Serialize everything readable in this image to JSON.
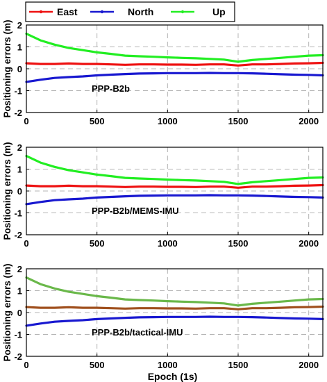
{
  "chart_data": [
    {
      "type": "line",
      "annotation": "PPP-B2b",
      "ylabel": "Positioning errors (m)",
      "xlabel": "",
      "xlim": [
        0,
        2100
      ],
      "ylim": [
        -2,
        2
      ],
      "xticks": [
        0,
        500,
        1000,
        1500,
        2000
      ],
      "yticks": [
        -2,
        -1,
        0,
        1,
        2
      ],
      "grid": true,
      "legend": "top",
      "series": [
        {
          "name": "East",
          "color": "#ee1111",
          "x": [
            0,
            100,
            200,
            300,
            400,
            500,
            600,
            700,
            800,
            900,
            1000,
            1100,
            1200,
            1300,
            1400,
            1500,
            1600,
            1700,
            1800,
            1900,
            2000,
            2100
          ],
          "y": [
            0.25,
            0.22,
            0.22,
            0.24,
            0.22,
            0.22,
            0.2,
            0.18,
            0.2,
            0.2,
            0.19,
            0.19,
            0.18,
            0.2,
            0.2,
            0.15,
            0.2,
            0.2,
            0.22,
            0.24,
            0.25,
            0.27
          ]
        },
        {
          "name": "North",
          "color": "#1818d0",
          "x": [
            0,
            100,
            200,
            300,
            400,
            500,
            600,
            700,
            800,
            900,
            1000,
            1100,
            1200,
            1300,
            1400,
            1500,
            1600,
            1700,
            1800,
            1900,
            2000,
            2100
          ],
          "y": [
            -0.6,
            -0.5,
            -0.42,
            -0.38,
            -0.35,
            -0.3,
            -0.27,
            -0.24,
            -0.22,
            -0.21,
            -0.2,
            -0.2,
            -0.2,
            -0.19,
            -0.2,
            -0.2,
            -0.21,
            -0.23,
            -0.25,
            -0.27,
            -0.28,
            -0.3
          ]
        },
        {
          "name": "Up",
          "color": "#22ee22",
          "x": [
            0,
            100,
            200,
            300,
            400,
            500,
            600,
            700,
            800,
            900,
            1000,
            1100,
            1200,
            1300,
            1400,
            1500,
            1600,
            1700,
            1800,
            1900,
            2000,
            2100
          ],
          "y": [
            1.6,
            1.3,
            1.1,
            0.95,
            0.85,
            0.75,
            0.68,
            0.6,
            0.57,
            0.55,
            0.52,
            0.5,
            0.48,
            0.45,
            0.42,
            0.32,
            0.4,
            0.45,
            0.5,
            0.55,
            0.6,
            0.62
          ]
        }
      ]
    },
    {
      "type": "line",
      "annotation": "PPP-B2b/MEMS-IMU",
      "ylabel": "Positioning errors (m)",
      "xlabel": "",
      "xlim": [
        0,
        2100
      ],
      "ylim": [
        -2,
        2
      ],
      "xticks": [
        0,
        500,
        1000,
        1500,
        2000
      ],
      "yticks": [
        -2,
        -1,
        0,
        1,
        2
      ],
      "grid": true,
      "series": [
        {
          "name": "East",
          "color": "#ee1111",
          "x": [
            0,
            100,
            200,
            300,
            400,
            500,
            600,
            700,
            800,
            900,
            1000,
            1100,
            1200,
            1300,
            1400,
            1500,
            1600,
            1700,
            1800,
            1900,
            2000,
            2100
          ],
          "y": [
            0.25,
            0.22,
            0.22,
            0.24,
            0.22,
            0.22,
            0.2,
            0.18,
            0.2,
            0.2,
            0.19,
            0.19,
            0.18,
            0.2,
            0.2,
            0.15,
            0.2,
            0.2,
            0.22,
            0.24,
            0.25,
            0.27
          ]
        },
        {
          "name": "North",
          "color": "#1818d0",
          "x": [
            0,
            100,
            200,
            300,
            400,
            500,
            600,
            700,
            800,
            900,
            1000,
            1100,
            1200,
            1300,
            1400,
            1500,
            1600,
            1700,
            1800,
            1900,
            2000,
            2100
          ],
          "y": [
            -0.6,
            -0.5,
            -0.42,
            -0.38,
            -0.35,
            -0.3,
            -0.27,
            -0.24,
            -0.22,
            -0.21,
            -0.2,
            -0.2,
            -0.2,
            -0.19,
            -0.2,
            -0.2,
            -0.21,
            -0.23,
            -0.25,
            -0.27,
            -0.28,
            -0.3
          ]
        },
        {
          "name": "Up",
          "color": "#22ee22",
          "x": [
            0,
            100,
            200,
            300,
            400,
            500,
            600,
            700,
            800,
            900,
            1000,
            1100,
            1200,
            1300,
            1400,
            1500,
            1600,
            1700,
            1800,
            1900,
            2000,
            2100
          ],
          "y": [
            1.6,
            1.3,
            1.1,
            0.95,
            0.85,
            0.75,
            0.68,
            0.6,
            0.57,
            0.55,
            0.52,
            0.5,
            0.48,
            0.45,
            0.42,
            0.32,
            0.4,
            0.45,
            0.5,
            0.55,
            0.6,
            0.62
          ]
        }
      ]
    },
    {
      "type": "line",
      "annotation": "PPP-B2b/tactical-IMU",
      "ylabel": "Positioning errors (m)",
      "xlabel": "Epoch (1s)",
      "xlim": [
        0,
        2100
      ],
      "ylim": [
        -2,
        2
      ],
      "xticks": [
        0,
        500,
        1000,
        1500,
        2000
      ],
      "yticks": [
        -2,
        -1,
        0,
        1,
        2
      ],
      "grid": true,
      "series": [
        {
          "name": "East",
          "color": "#a0501e",
          "x": [
            0,
            100,
            200,
            300,
            400,
            500,
            600,
            700,
            800,
            900,
            1000,
            1100,
            1200,
            1300,
            1400,
            1500,
            1600,
            1700,
            1800,
            1900,
            2000,
            2100
          ],
          "y": [
            0.25,
            0.22,
            0.22,
            0.24,
            0.22,
            0.22,
            0.2,
            0.18,
            0.2,
            0.2,
            0.19,
            0.19,
            0.18,
            0.2,
            0.2,
            0.15,
            0.2,
            0.2,
            0.22,
            0.24,
            0.25,
            0.27
          ]
        },
        {
          "name": "North",
          "color": "#1818d0",
          "x": [
            0,
            100,
            200,
            300,
            400,
            500,
            600,
            700,
            800,
            900,
            1000,
            1100,
            1200,
            1300,
            1400,
            1500,
            1600,
            1700,
            1800,
            1900,
            2000,
            2100
          ],
          "y": [
            -0.6,
            -0.5,
            -0.42,
            -0.38,
            -0.35,
            -0.3,
            -0.27,
            -0.24,
            -0.22,
            -0.21,
            -0.2,
            -0.2,
            -0.2,
            -0.19,
            -0.2,
            -0.2,
            -0.21,
            -0.23,
            -0.25,
            -0.27,
            -0.28,
            -0.3
          ]
        },
        {
          "name": "Up",
          "color": "#6ab84a",
          "x": [
            0,
            100,
            200,
            300,
            400,
            500,
            600,
            700,
            800,
            900,
            1000,
            1100,
            1200,
            1300,
            1400,
            1500,
            1600,
            1700,
            1800,
            1900,
            2000,
            2100
          ],
          "y": [
            1.6,
            1.3,
            1.1,
            0.95,
            0.85,
            0.75,
            0.68,
            0.6,
            0.57,
            0.55,
            0.52,
            0.5,
            0.48,
            0.45,
            0.42,
            0.32,
            0.4,
            0.45,
            0.5,
            0.55,
            0.6,
            0.62
          ]
        }
      ]
    }
  ],
  "legend": {
    "entries": [
      {
        "name": "East",
        "color": "#ee1111"
      },
      {
        "name": "North",
        "color": "#1818d0"
      },
      {
        "name": "Up",
        "color": "#22ee22"
      }
    ]
  }
}
